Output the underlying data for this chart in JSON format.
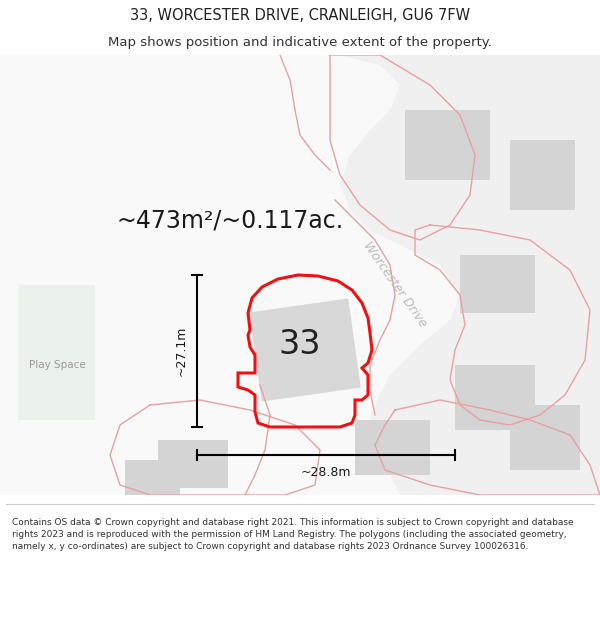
{
  "title": "33, WORCESTER DRIVE, CRANLEIGH, GU6 7FW",
  "subtitle": "Map shows position and indicative extent of the property.",
  "area_label": "~473m²/~0.117ac.",
  "dim_height": "~27.1m",
  "dim_width": "~28.8m",
  "number_label": "33",
  "play_space_label": "Play Space",
  "road_label": "Worcester Drive",
  "footer": "Contains OS data © Crown copyright and database right 2021. This information is subject to Crown copyright and database rights 2023 and is reproduced with the permission of HM Land Registry. The polygons (including the associated geometry, namely x, y co-ordinates) are subject to Crown copyright and database rights 2023 Ordnance Survey 100026316.",
  "bg_color": "#ffffff",
  "red_color": "#ee1111",
  "pink_color": "#e8a0a0",
  "gray_building": "#d4d4d4",
  "gray_road": "#e8e8e8",
  "green_light": "#e8f0e8",
  "text_gray": "#aaaaaa",
  "footer_divider": "#cccccc",
  "title_fontsize": 10.5,
  "subtitle_fontsize": 9.5
}
